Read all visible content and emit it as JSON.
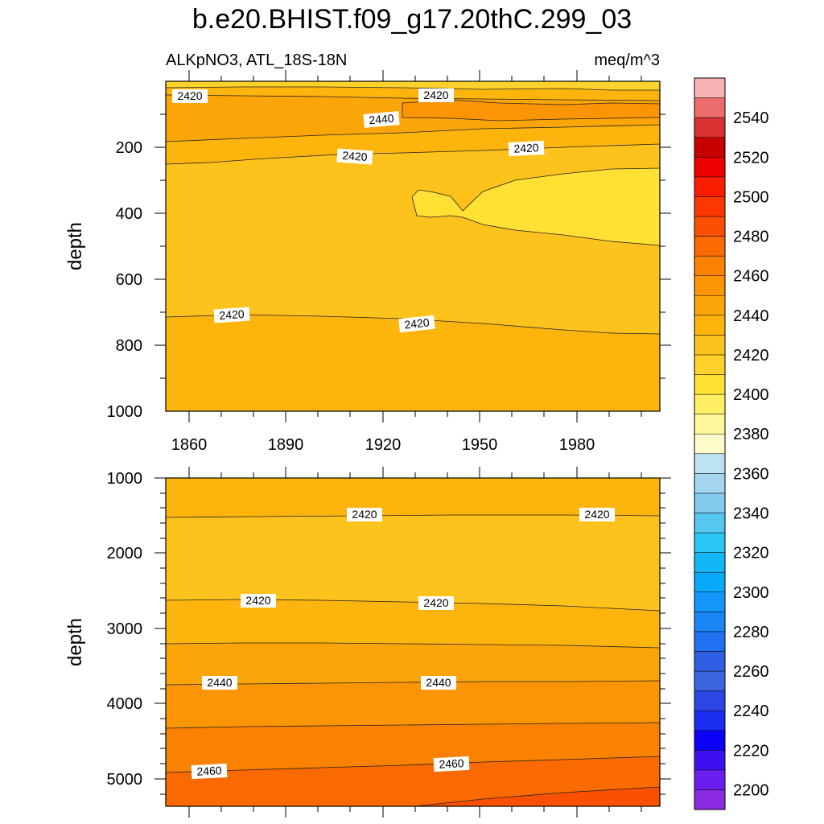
{
  "chart_data": {
    "type": "heatmap",
    "title": "b.e20.BHIST.f09_g17.20thC.299_03",
    "subtitle_left": "ALKpNO3, ATL_18S-18N",
    "units": "meq/m^3",
    "colorbar": {
      "levels": [
        2200,
        2210,
        2220,
        2230,
        2240,
        2250,
        2260,
        2270,
        2280,
        2290,
        2300,
        2310,
        2320,
        2330,
        2340,
        2350,
        2360,
        2370,
        2380,
        2390,
        2400,
        2410,
        2420,
        2430,
        2440,
        2450,
        2460,
        2470,
        2480,
        2490,
        2500,
        2510,
        2520,
        2530,
        2540,
        2550
      ],
      "tick_labels": [
        "2200",
        "2220",
        "2240",
        "2260",
        "2280",
        "2300",
        "2320",
        "2340",
        "2360",
        "2380",
        "2400",
        "2420",
        "2440",
        "2460",
        "2480",
        "2500",
        "2520",
        "2540"
      ],
      "colors": [
        "#8a2be2",
        "#6a1ff0",
        "#3c10f2",
        "#0c00f8",
        "#1a2cf0",
        "#2a47e6",
        "#3b66e0",
        "#2e5fe4",
        "#2072f2",
        "#1a86f6",
        "#1497fa",
        "#0aa8f8",
        "#11b7f6",
        "#2bc6f6",
        "#55c8f2",
        "#82cbef",
        "#a3d6ee",
        "#bde2f2",
        "#fffccc",
        "#fff799",
        "#ffee66",
        "#ffe033",
        "#fed12b",
        "#fec21c",
        "#fdb50e",
        "#fca508",
        "#fb9504",
        "#fb8100",
        "#fa6a00",
        "#fb5000",
        "#fc3800",
        "#fc1c00",
        "#ec0000",
        "#c60000",
        "#d83232",
        "#ec6c6c",
        "#f8b4b4"
      ]
    },
    "panels": [
      {
        "ylabel": "depth",
        "y_ticks": [
          "200",
          "400",
          "600",
          "800",
          "1000"
        ],
        "x_ticks": [
          "1860",
          "1890",
          "1920",
          "1950",
          "1980"
        ],
        "contour_labels": [
          "2420",
          "2420",
          "2440",
          "2420",
          "2420",
          "2420",
          "2420"
        ]
      },
      {
        "ylabel": "depth",
        "y_ticks": [
          "1000",
          "2000",
          "3000",
          "4000",
          "5000"
        ],
        "contour_labels": [
          "2420",
          "2420",
          "2420",
          "2420",
          "2440",
          "2440",
          "2460",
          "2460"
        ]
      }
    ]
  }
}
